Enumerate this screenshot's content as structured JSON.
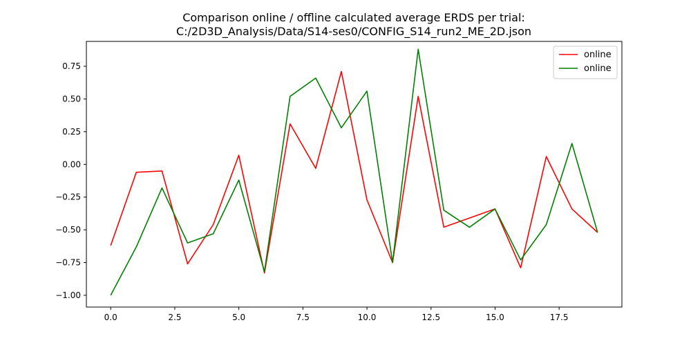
{
  "chart_data": {
    "type": "line",
    "title_lines": [
      "Comparison online / offline calculated average ERDS per trial:",
      "C:/2D3D_Analysis/Data/S14-ses0/CONFIG_S14_run2_ME_2D.json"
    ],
    "xlabel": "",
    "ylabel": "",
    "xlim": [
      -0.95,
      19.95
    ],
    "ylim": [
      -1.09,
      0.94
    ],
    "x_ticks": [
      0.0,
      2.5,
      5.0,
      7.5,
      10.0,
      12.5,
      15.0,
      17.5
    ],
    "x_tick_labels": [
      "0.0",
      "2.5",
      "5.0",
      "7.5",
      "10.0",
      "12.5",
      "15.0",
      "17.5"
    ],
    "y_ticks": [
      -1.0,
      -0.75,
      -0.5,
      -0.25,
      0.0,
      0.25,
      0.5,
      0.75
    ],
    "y_tick_labels": [
      "−1.00",
      "−0.75",
      "−0.50",
      "−0.25",
      "0.00",
      "0.25",
      "0.50",
      "0.75"
    ],
    "grid": false,
    "legend_position": "top-right",
    "x": [
      0,
      1,
      2,
      3,
      4,
      5,
      6,
      7,
      8,
      9,
      10,
      11,
      12,
      13,
      14,
      15,
      16,
      17,
      18,
      19
    ],
    "series": [
      {
        "name": "online",
        "color": "#ff0000",
        "values": [
          -0.62,
          -0.06,
          -0.05,
          -0.76,
          -0.46,
          0.07,
          -0.83,
          0.31,
          -0.03,
          0.71,
          -0.27,
          -0.75,
          0.52,
          -0.48,
          -0.41,
          -0.34,
          -0.79,
          0.06,
          -0.34,
          -0.52
        ]
      },
      {
        "name": "online",
        "color": "#008000",
        "values": [
          -1.0,
          -0.63,
          -0.18,
          -0.6,
          -0.53,
          -0.12,
          -0.82,
          0.52,
          0.66,
          0.28,
          0.56,
          -0.75,
          0.88,
          -0.35,
          -0.48,
          -0.34,
          -0.73,
          -0.46,
          0.16,
          -0.52
        ]
      }
    ]
  }
}
